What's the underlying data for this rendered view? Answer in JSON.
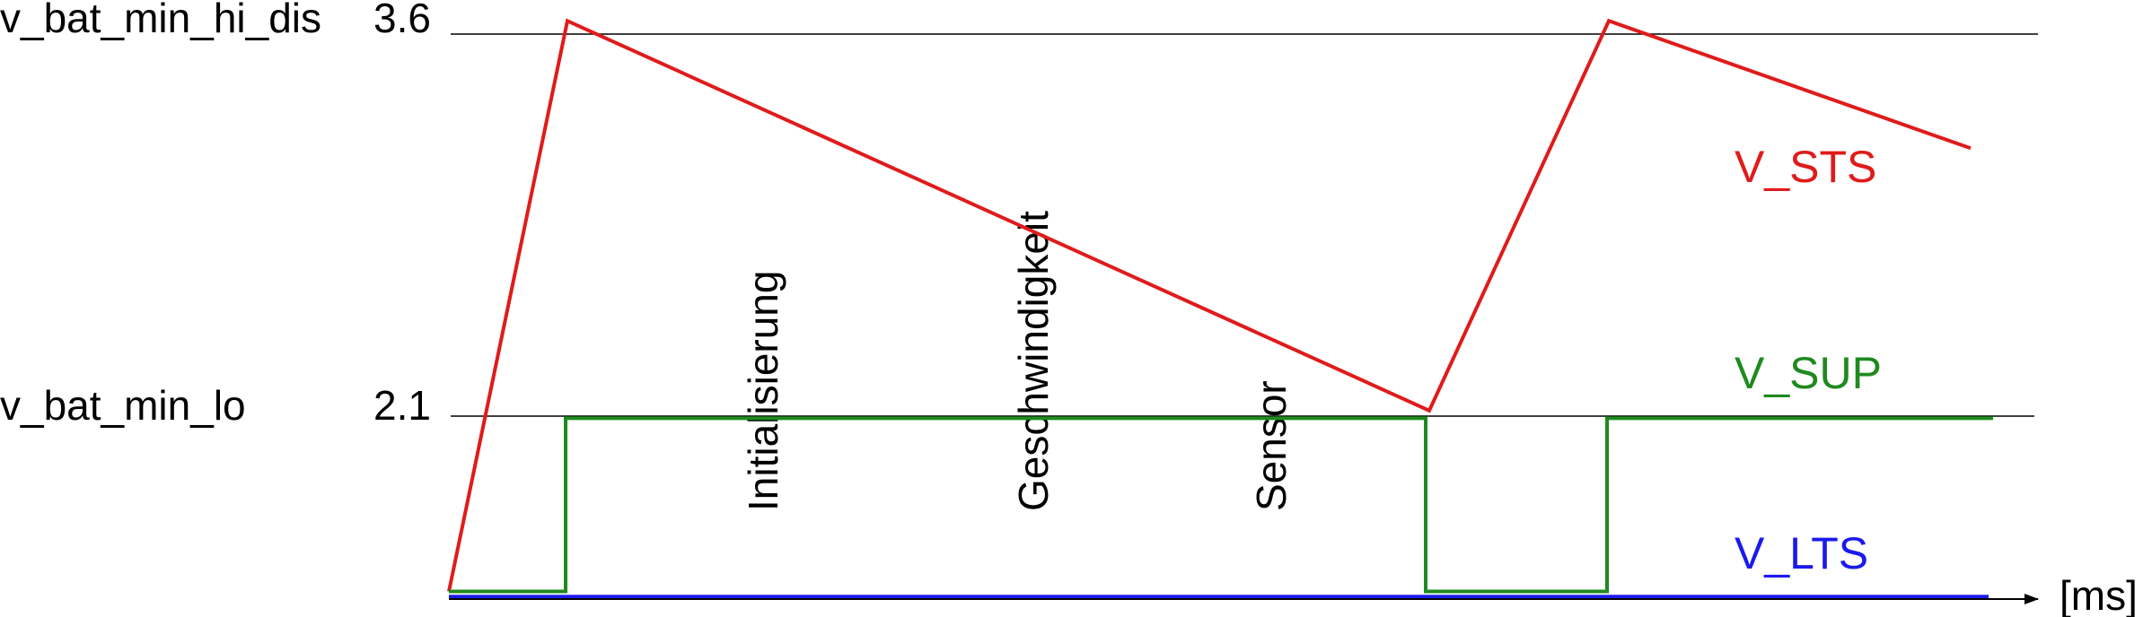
{
  "chart_data": {
    "type": "line",
    "title": "",
    "xlabel": "[ms]",
    "ylabel": "",
    "grid": false,
    "y_levels": [
      {
        "name": "v_bat_min_hi_dis",
        "value": 3.6,
        "value_label": "3.6"
      },
      {
        "name": "v_bat_min_lo",
        "value": 2.1,
        "value_label": "2.1"
      }
    ],
    "phases": [
      {
        "label": "Initialisierung",
        "x": 375
      },
      {
        "label": "Geschwindigkeit",
        "x": 650
      },
      {
        "label": "Sensor",
        "x": 890
      }
    ],
    "series": [
      {
        "name": "V_STS",
        "color": "#e01b1b",
        "points": [
          [
            0,
            1.4
          ],
          [
            132,
            3.64
          ],
          [
            1092,
            2.11
          ],
          [
            1292,
            3.64
          ],
          [
            1695,
            3.14
          ]
        ]
      },
      {
        "name": "V_SUP",
        "color": "#1f8a1f",
        "points": [
          [
            0,
            1.4
          ],
          [
            130,
            1.4
          ],
          [
            130,
            2.08
          ],
          [
            1088,
            2.08
          ],
          [
            1088,
            1.4
          ],
          [
            1290,
            1.4
          ],
          [
            1290,
            2.08
          ],
          [
            1720,
            2.08
          ]
        ]
      },
      {
        "name": "V_LTS",
        "color": "#1a1aee",
        "points": [
          [
            0,
            1.38
          ],
          [
            1715,
            1.38
          ]
        ]
      }
    ],
    "axes": {
      "xlim": [
        0,
        1800
      ],
      "ylim": [
        1.37,
        3.69
      ]
    }
  }
}
